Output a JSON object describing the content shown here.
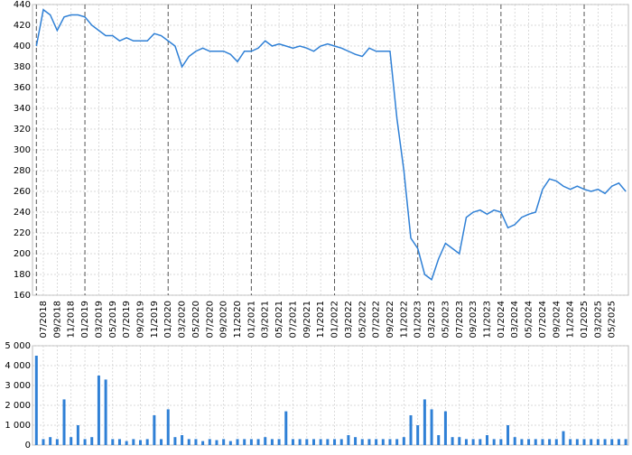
{
  "chart_data": {
    "type": "line",
    "x": [
      "06/2018",
      "07/2018",
      "08/2018",
      "09/2018",
      "10/2018",
      "11/2018",
      "12/2018",
      "01/2019",
      "02/2019",
      "03/2019",
      "04/2019",
      "05/2019",
      "06/2019",
      "07/2019",
      "08/2019",
      "09/2019",
      "10/2019",
      "11/2019",
      "12/2019",
      "01/2020",
      "02/2020",
      "03/2020",
      "04/2020",
      "05/2020",
      "06/2020",
      "07/2020",
      "08/2020",
      "09/2020",
      "10/2020",
      "11/2020",
      "12/2020",
      "01/2021",
      "02/2021",
      "03/2021",
      "04/2021",
      "05/2021",
      "06/2021",
      "07/2021",
      "08/2021",
      "09/2021",
      "10/2021",
      "11/2021",
      "12/2021",
      "01/2022",
      "02/2022",
      "03/2022",
      "04/2022",
      "05/2022",
      "06/2022",
      "07/2022",
      "08/2022",
      "09/2022",
      "10/2022",
      "11/2022",
      "12/2022",
      "01/2023",
      "02/2023",
      "03/2023",
      "04/2023",
      "05/2023",
      "06/2023",
      "07/2023",
      "08/2023",
      "09/2023",
      "10/2023",
      "11/2023",
      "12/2023",
      "01/2024",
      "02/2024",
      "03/2024",
      "04/2024",
      "05/2024",
      "06/2024",
      "07/2024",
      "08/2024",
      "09/2024",
      "10/2024",
      "11/2024",
      "12/2024",
      "01/2025",
      "02/2025",
      "03/2025",
      "04/2025",
      "05/2025",
      "06/2025",
      "07/2025"
    ],
    "series": [
      {
        "color": "#2f80d6",
        "values": [
          400,
          435,
          430,
          415,
          428,
          430,
          430,
          428,
          420,
          415,
          410,
          410,
          405,
          408,
          405,
          405,
          405,
          412,
          410,
          405,
          400,
          380,
          390,
          395,
          398,
          395,
          395,
          395,
          392,
          385,
          395,
          395,
          398,
          405,
          400,
          402,
          400,
          398,
          400,
          398,
          395,
          400,
          402,
          400,
          398,
          395,
          392,
          390,
          398,
          395,
          395,
          395,
          330,
          280,
          215,
          205,
          180,
          175,
          195,
          210,
          205,
          200,
          235,
          240,
          242,
          238,
          242,
          240,
          225,
          228,
          235,
          238,
          240,
          262,
          272,
          270,
          265,
          262,
          265,
          262,
          260,
          262,
          258,
          265,
          268,
          260
        ]
      }
    ],
    "volume": {
      "color": "#2f80d6",
      "values": [
        4500,
        300,
        400,
        300,
        2300,
        400,
        1000,
        300,
        400,
        3500,
        3300,
        300,
        300,
        200,
        300,
        250,
        300,
        1500,
        300,
        1800,
        400,
        500,
        300,
        300,
        200,
        300,
        250,
        300,
        200,
        300,
        300,
        300,
        300,
        400,
        300,
        300,
        1700,
        300,
        300,
        300,
        300,
        300,
        300,
        300,
        300,
        500,
        400,
        300,
        300,
        300,
        300,
        300,
        300,
        400,
        1500,
        1000,
        2300,
        1800,
        500,
        1700,
        400,
        400,
        300,
        300,
        300,
        500,
        300,
        300,
        1000,
        400,
        300,
        300,
        300,
        300,
        300,
        300,
        700,
        300,
        300,
        300,
        300,
        300,
        300,
        300,
        300,
        300
      ],
      "ylim": [
        0,
        5000
      ],
      "yticks": [
        0,
        {
          "value": 1000,
          "label": "1 000"
        },
        {
          "value": 2000,
          "label": "2 000"
        },
        {
          "value": 3000,
          "label": "3 000"
        },
        {
          "value": 4000,
          "label": "4 000"
        },
        {
          "value": 5000,
          "label": "5 000"
        }
      ]
    },
    "ylim": [
      160,
      440
    ],
    "yticks": [
      160,
      180,
      200,
      220,
      240,
      260,
      280,
      300,
      320,
      340,
      360,
      380,
      400,
      420,
      440
    ],
    "xticks": [
      "07/2018",
      "09/2018",
      "11/2018",
      "01/2019",
      "03/2019",
      "05/2019",
      "07/2019",
      "09/2019",
      "11/2019",
      "01/2020",
      "03/2020",
      "05/2020",
      "07/2020",
      "09/2020",
      "11/2020",
      "01/2021",
      "03/2021",
      "05/2021",
      "07/2021",
      "09/2021",
      "11/2021",
      "01/2022",
      "03/2022",
      "05/2022",
      "07/2022",
      "09/2022",
      "11/2022",
      "01/2023",
      "03/2023",
      "05/2023",
      "07/2023",
      "09/2023",
      "11/2023",
      "01/2024",
      "03/2024",
      "05/2024",
      "07/2024",
      "09/2024",
      "11/2024",
      "01/2025",
      "03/2025",
      "05/2025"
    ],
    "grid": true
  }
}
